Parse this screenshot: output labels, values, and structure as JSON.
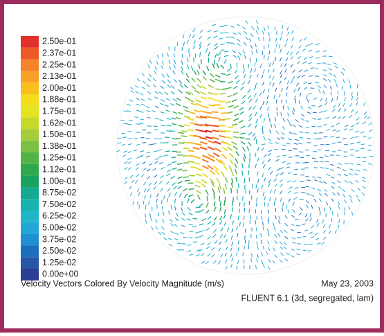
{
  "legend": {
    "entries": [
      {
        "label": "2.50e-01",
        "color": "#e32f2a"
      },
      {
        "label": "2.37e-01",
        "color": "#ee5a27"
      },
      {
        "label": "2.25e-01",
        "color": "#f4832a"
      },
      {
        "label": "2.13e-01",
        "color": "#f7a226"
      },
      {
        "label": "2.00e-01",
        "color": "#f9bf1d"
      },
      {
        "label": "1.88e-01",
        "color": "#f5dc1b"
      },
      {
        "label": "1.75e-01",
        "color": "#e4e31f"
      },
      {
        "label": "1.62e-01",
        "color": "#c6d92b"
      },
      {
        "label": "1.50e-01",
        "color": "#a3cd3a"
      },
      {
        "label": "1.38e-01",
        "color": "#7cc043"
      },
      {
        "label": "1.25e-01",
        "color": "#52b448"
      },
      {
        "label": "1.12e-01",
        "color": "#2fa84e"
      },
      {
        "label": "1.00e-01",
        "color": "#1aa35e"
      },
      {
        "label": "8.75e-02",
        "color": "#15a98f"
      },
      {
        "label": "7.50e-02",
        "color": "#17b3ae"
      },
      {
        "label": "6.25e-02",
        "color": "#1fb7c8"
      },
      {
        "label": "5.00e-02",
        "color": "#22a8d7"
      },
      {
        "label": "3.75e-02",
        "color": "#1f8fd2"
      },
      {
        "label": "2.50e-02",
        "color": "#1c6ebf"
      },
      {
        "label": "1.25e-02",
        "color": "#2756a7"
      },
      {
        "label": "0.00e+00",
        "color": "#2c3e95"
      }
    ]
  },
  "caption": {
    "title": "Velocity Vectors Colored By Velocity Magnitude (m/s)",
    "date": "May 23, 2003",
    "solver": "FLUENT 6.1 (3d, segregated, lam)"
  }
}
